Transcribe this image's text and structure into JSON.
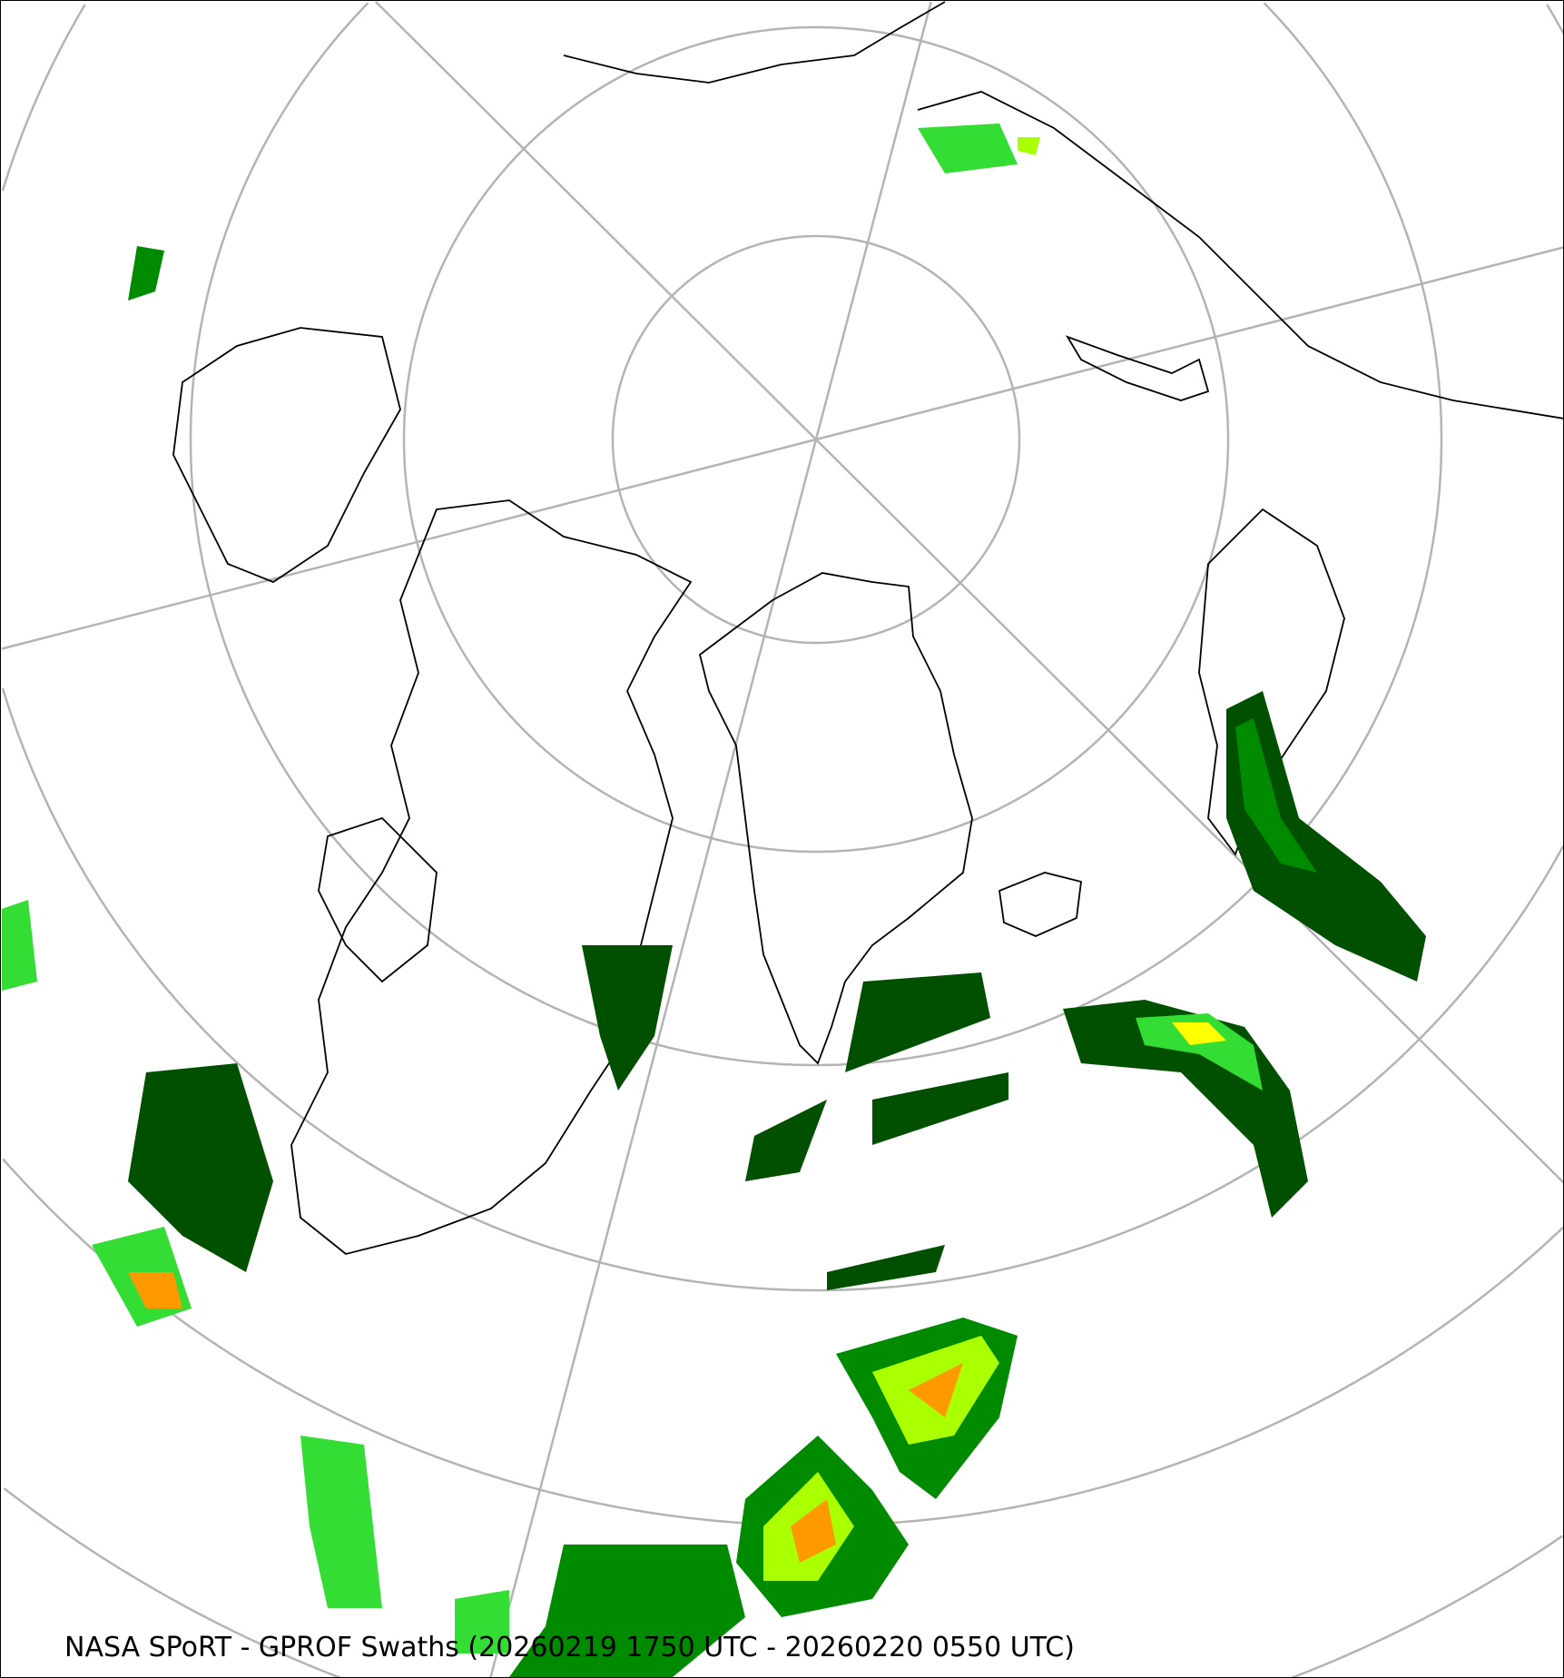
{
  "caption": "NASA SPoRT - GPROF Swaths (20260219 1750 UTC - 20260220 0550 UTC)",
  "projection": "north-polar-stereographic",
  "colors": {
    "graticule": "#b4b4b4",
    "coastline": "#000000",
    "precip_levels": [
      "#005000",
      "#008a00",
      "#33dd33",
      "#aaff00",
      "#ffff00",
      "#ff9900",
      "#ff2200"
    ]
  }
}
